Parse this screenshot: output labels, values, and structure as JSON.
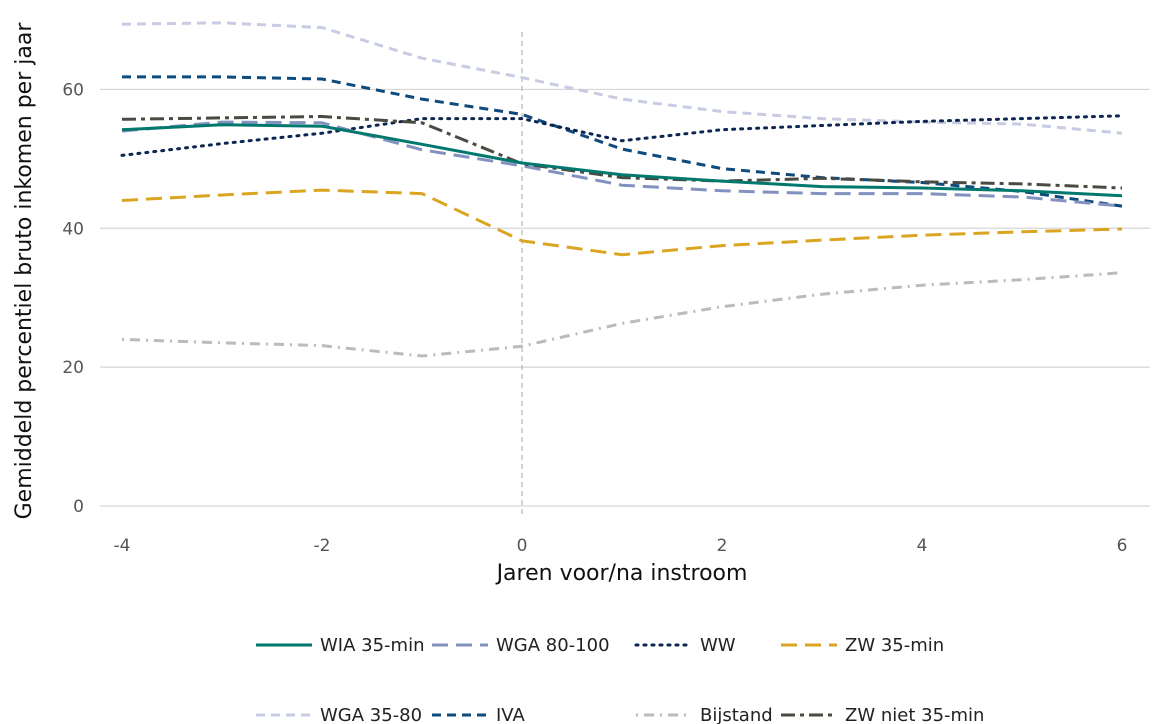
{
  "chart_data": {
    "type": "line",
    "xlabel": "Jaren voor/na instroom",
    "ylabel": "Gemiddeld percentiel bruto inkomen per jaar",
    "xlim": [
      -4,
      6
    ],
    "ylim": [
      0,
      70
    ],
    "x_ticks": [
      -4,
      -2,
      0,
      2,
      4,
      6
    ],
    "x_tick_labels": [
      "-4",
      "-2",
      "0",
      "2",
      "4",
      "6"
    ],
    "y_ticks": [
      0,
      20,
      40,
      60
    ],
    "y_tick_labels": [
      "0",
      "20",
      "40",
      "60"
    ],
    "grid": "horizontal",
    "reference_line_x": 0,
    "legend_position": "bottom",
    "x": [
      -4,
      -3,
      -2,
      -1,
      0,
      1,
      2,
      3,
      4,
      5,
      6
    ],
    "series": [
      {
        "name": "WIA 35-min",
        "color": "#00786e",
        "dash": "solid",
        "values": [
          54.2,
          54.9,
          54.7,
          52.1,
          49.4,
          47.7,
          46.8,
          46.0,
          45.8,
          45.4,
          44.7
        ]
      },
      {
        "name": "WGA 80-100",
        "color": "#8391be",
        "dash": "longdash",
        "values": [
          54.0,
          55.3,
          55.2,
          51.3,
          49.0,
          46.2,
          45.4,
          45.0,
          45.0,
          44.5,
          43.2
        ]
      },
      {
        "name": "WW",
        "color": "#0c2551",
        "dash": "dotted",
        "values": [
          50.5,
          52.2,
          53.7,
          55.8,
          55.8,
          52.6,
          54.2,
          54.8,
          55.4,
          55.8,
          56.2
        ]
      },
      {
        "name": "ZW 35-min",
        "color": "#daa520",
        "dash": "longdash",
        "values": [
          44.0,
          44.8,
          45.5,
          45.0,
          38.2,
          36.2,
          37.5,
          38.3,
          39.0,
          39.5,
          39.9
        ]
      },
      {
        "name": "WGA 35-80",
        "color": "#c8cce3",
        "dash": "dashed",
        "values": [
          69.4,
          69.6,
          68.9,
          64.5,
          61.7,
          58.6,
          56.8,
          55.8,
          55.3,
          55.0,
          53.7
        ]
      },
      {
        "name": "IVA",
        "color": "#0e4a7c",
        "dash": "dashed",
        "values": [
          61.8,
          61.8,
          61.5,
          58.6,
          56.4,
          51.4,
          48.6,
          47.3,
          46.6,
          45.3,
          43.2
        ]
      },
      {
        "name": "Bijstand",
        "color": "#bbbbbb",
        "dash": "dotdash",
        "values": [
          24.0,
          23.5,
          23.1,
          21.6,
          23.0,
          26.3,
          28.7,
          30.5,
          31.8,
          32.6,
          33.6
        ]
      },
      {
        "name": "ZW niet 35-min",
        "color": "#4a4a42",
        "dash": "twodash",
        "values": [
          55.7,
          55.9,
          56.1,
          55.2,
          49.3,
          47.3,
          46.8,
          47.2,
          46.7,
          46.4,
          45.8
        ]
      }
    ]
  }
}
